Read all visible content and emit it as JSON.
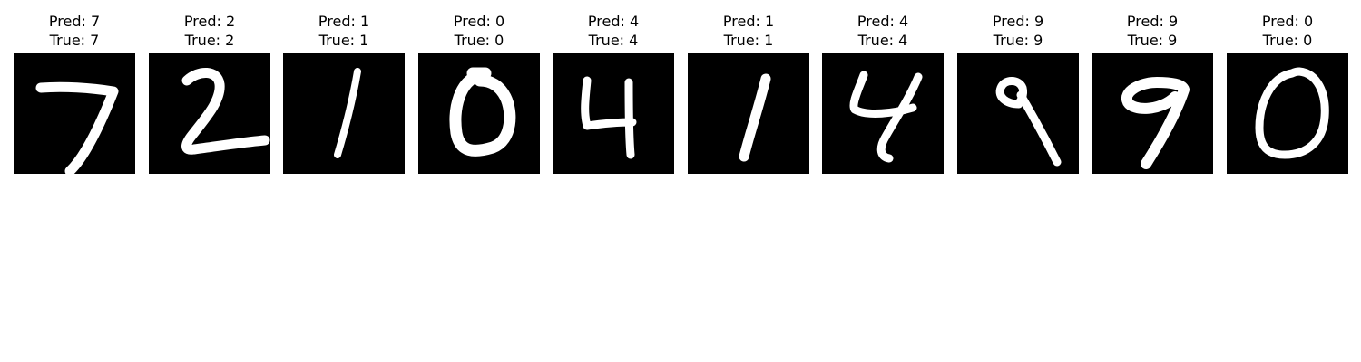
{
  "samples": [
    {
      "pred_text": "Pred: 7",
      "true_text": "True: 7",
      "digit": 7
    },
    {
      "pred_text": "Pred: 2",
      "true_text": "True: 2",
      "digit": 2
    },
    {
      "pred_text": "Pred: 1",
      "true_text": "True: 1",
      "digit": 1
    },
    {
      "pred_text": "Pred: 0",
      "true_text": "True: 0",
      "digit": 0
    },
    {
      "pred_text": "Pred: 4",
      "true_text": "True: 4",
      "digit": 4
    },
    {
      "pred_text": "Pred: 1",
      "true_text": "True: 1",
      "digit": 1
    },
    {
      "pred_text": "Pred: 4",
      "true_text": "True: 4",
      "digit": 4
    },
    {
      "pred_text": "Pred: 9",
      "true_text": "True: 9",
      "digit": 9
    },
    {
      "pred_text": "Pred: 9",
      "true_text": "True: 9",
      "digit": 9
    },
    {
      "pred_text": "Pred: 0",
      "true_text": "True: 0",
      "digit": 0
    }
  ],
  "colors": {
    "background": "#ffffff",
    "image_background": "#000000",
    "stroke": "#ffffff"
  }
}
